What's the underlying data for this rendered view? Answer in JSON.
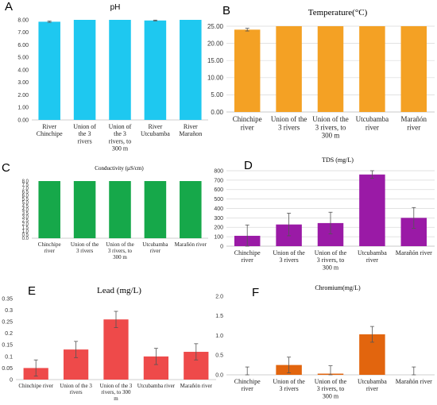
{
  "chart_data": [
    {
      "panel_label": "A",
      "type": "bar",
      "title": "pH",
      "categories": [
        "River Chinchipe",
        "Union of the 3 rivers",
        "Union of the 3 rivers, to 300 m",
        "River Utcubamba",
        "River Marañon"
      ],
      "values": [
        7.85,
        8.0,
        8.0,
        7.95,
        8.0
      ],
      "errors": [
        0.05,
        0,
        0,
        0.03,
        0
      ],
      "ylim": [
        0,
        8
      ],
      "yticks": [
        "0.00",
        "1.00",
        "2.00",
        "3.00",
        "4.00",
        "5.00",
        "6.00",
        "7.00",
        "8.00"
      ],
      "grid": false,
      "color": "#1ec8f0"
    },
    {
      "panel_label": "B",
      "type": "bar",
      "title": "Temperature(°C)",
      "categories": [
        "Chinchipe river",
        "Union of the 3 rivers",
        "Union of the 3 rivers, to 300 m",
        "Utcubamba river",
        "Marañón river"
      ],
      "values": [
        24.0,
        25.0,
        25.0,
        25.0,
        25.0
      ],
      "errors": [
        0.4,
        0,
        0,
        0,
        0
      ],
      "ylim": [
        0,
        25
      ],
      "yticks": [
        "0.00",
        "5.00",
        "10.00",
        "15.00",
        "20.00",
        "25.00"
      ],
      "grid": true,
      "color": "#f4a124"
    },
    {
      "panel_label": "C",
      "type": "bar",
      "title": "Conductivity (µS/cm)",
      "categories": [
        "Chinchipe river",
        "Union of the 3 rivers",
        "Union of the 3 rivers, to 300 m",
        "Utcubamba river",
        "Marañón river"
      ],
      "values": [
        8.0,
        8.0,
        8.0,
        8.0,
        8.0
      ],
      "errors": [
        0,
        0,
        0,
        0,
        0
      ],
      "ylim": [
        0,
        8
      ],
      "yticks": [
        "0.0",
        "0.5",
        "1.0",
        "1.5",
        "2.0",
        "2.5",
        "3.0",
        "3.5",
        "4.0",
        "4.5",
        "5.0",
        "5.5",
        "6.0",
        "6.5",
        "7.0",
        "7.5",
        "8.0"
      ],
      "grid": false,
      "color": "#16a84a"
    },
    {
      "panel_label": "D",
      "type": "bar",
      "title": "TDS (mg/L)",
      "categories": [
        "Chinchipe river",
        "Union of the 3 rivers",
        "Union of the 3 rivers, to 300 m",
        "Utcubamba river",
        "Marañón river"
      ],
      "values": [
        110,
        230,
        245,
        760,
        300
      ],
      "errors": [
        115,
        120,
        115,
        40,
        110
      ],
      "ylim": [
        0,
        800
      ],
      "yticks": [
        "0",
        "100",
        "200",
        "300",
        "400",
        "500",
        "600",
        "700",
        "800"
      ],
      "grid": true,
      "color": "#9a1aa6"
    },
    {
      "panel_label": "E",
      "type": "bar",
      "title": "Lead (mg/L)",
      "categories": [
        "Chinchipe river",
        "Union of the 3 rivers",
        "Union of the 3 rivers, to 300 m",
        "Utcubamba river",
        "Marañón river"
      ],
      "values": [
        0.05,
        0.13,
        0.26,
        0.1,
        0.12
      ],
      "errors": [
        0.035,
        0.035,
        0.035,
        0.035,
        0.035
      ],
      "ylim": [
        0,
        0.35
      ],
      "yticks": [
        "0",
        "0.05",
        "0.1",
        "0.15",
        "0.2",
        "0.25",
        "0.3",
        "0.35"
      ],
      "grid": false,
      "color": "#ee4a4a"
    },
    {
      "panel_label": "F",
      "type": "bar",
      "title": "Chromium(mg/L)",
      "categories": [
        "Chinchipe river",
        "Union of the 3 rivers",
        "Union of the 3 rivers, to 300 m",
        "Utcubamba river",
        "Marañón river"
      ],
      "values": [
        0,
        0.25,
        0.03,
        1.03,
        0
      ],
      "errors": [
        0.2,
        0.2,
        0.2,
        0.2,
        0.2
      ],
      "ylim": [
        0,
        2.0
      ],
      "yticks": [
        "0.0",
        "0.5",
        "1.0",
        "1.5",
        "2.0"
      ],
      "grid": false,
      "color": "#e2650e"
    }
  ]
}
